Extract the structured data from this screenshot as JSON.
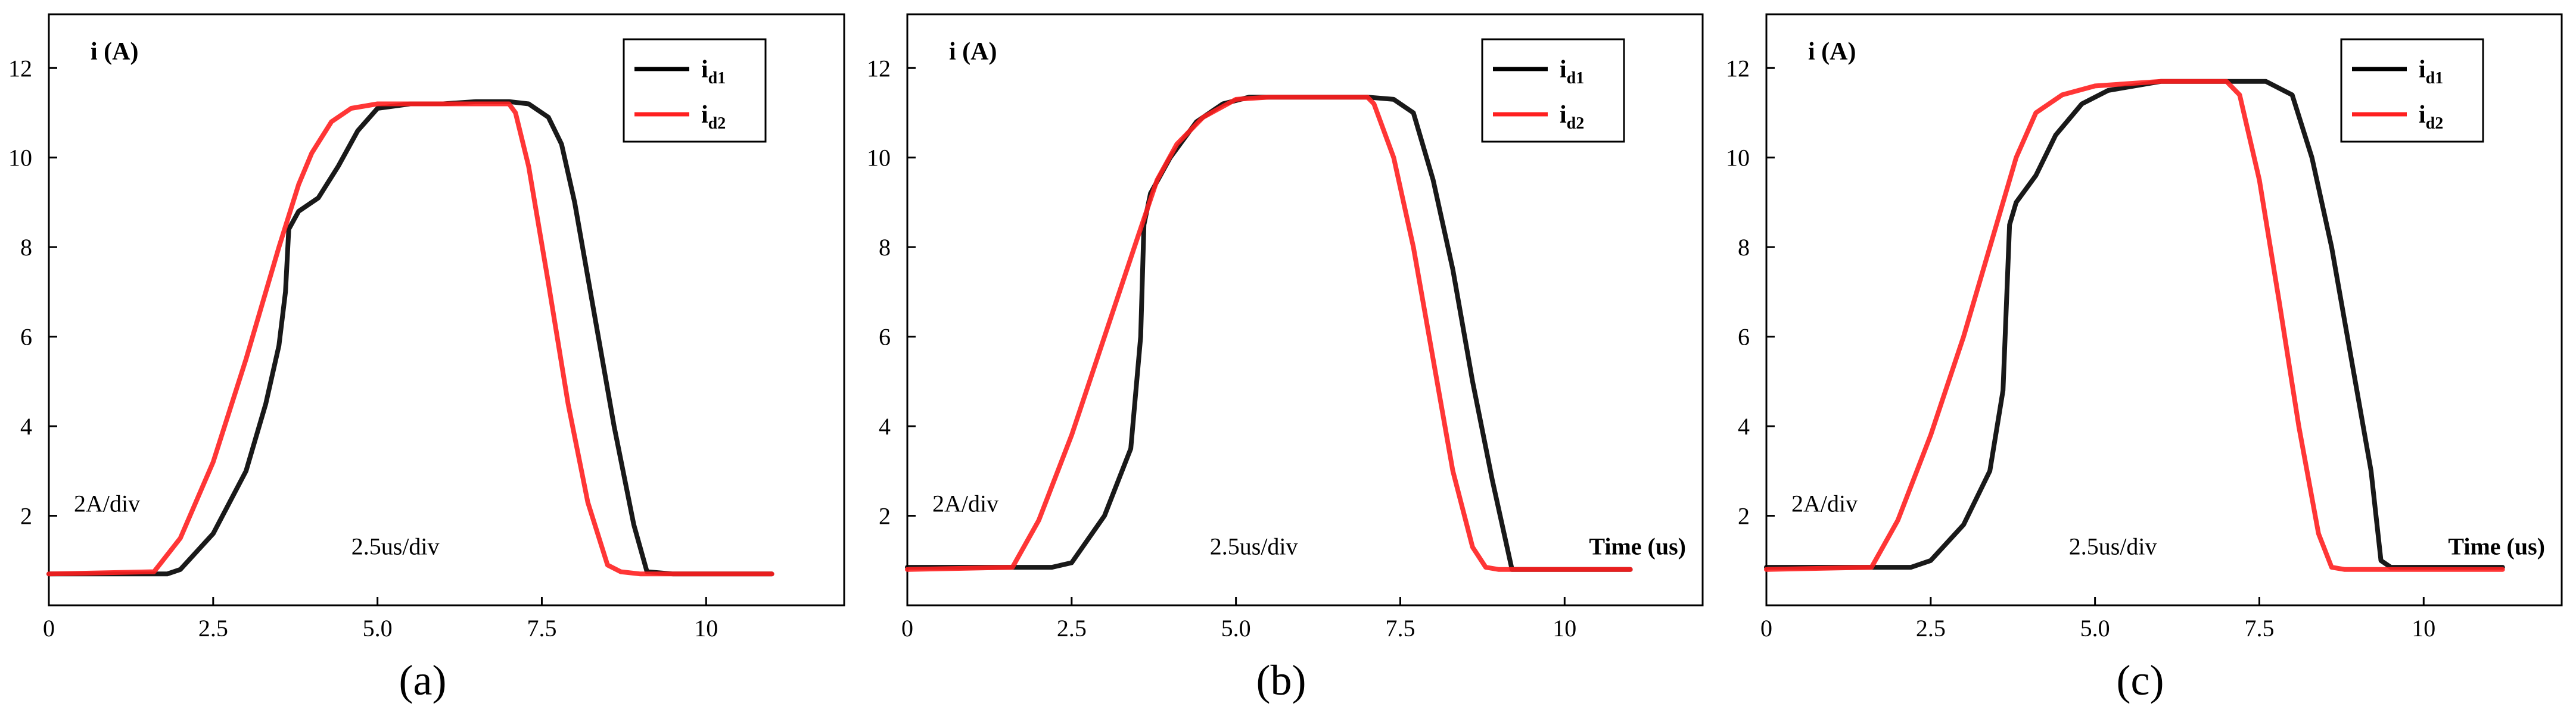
{
  "chart_data": [
    {
      "type": "line",
      "caption": "(a)",
      "ylabel": "i (A)",
      "xlabel": "",
      "scale_y": "2A/div",
      "scale_x": "2.5us/div",
      "xlim": [
        0,
        12.1
      ],
      "ylim": [
        0,
        13.2
      ],
      "xticks": [
        0,
        2.5,
        5.0,
        7.5,
        10
      ],
      "xtick_labels": [
        "0",
        "2.5",
        "5.0",
        "7.5",
        "10"
      ],
      "yticks": [
        2,
        4,
        6,
        8,
        10,
        12
      ],
      "ytick_labels": [
        "2",
        "4",
        "6",
        "8",
        "10",
        "12"
      ],
      "legend_position": "top-right",
      "series": [
        {
          "name": "i",
          "sub": "d1",
          "color": "#000000",
          "x": [
            0,
            1.8,
            2.0,
            2.5,
            3.0,
            3.3,
            3.5,
            3.6,
            3.65,
            3.8,
            4.1,
            4.4,
            4.7,
            5.0,
            5.5,
            6.0,
            6.5,
            7.0,
            7.3,
            7.6,
            7.8,
            8.0,
            8.3,
            8.6,
            8.9,
            9.1,
            9.5,
            11.0
          ],
          "y": [
            0.7,
            0.7,
            0.8,
            1.6,
            3.0,
            4.5,
            5.8,
            7.0,
            8.4,
            8.8,
            9.1,
            9.8,
            10.6,
            11.1,
            11.2,
            11.2,
            11.25,
            11.25,
            11.2,
            10.9,
            10.3,
            9.0,
            6.5,
            4.0,
            1.8,
            0.75,
            0.7,
            0.7
          ]
        },
        {
          "name": "i",
          "sub": "d2",
          "color": "#ff2020",
          "x": [
            0,
            1.6,
            2.0,
            2.5,
            3.0,
            3.5,
            3.8,
            4.0,
            4.3,
            4.6,
            5.0,
            5.5,
            6.0,
            6.5,
            7.0,
            7.1,
            7.3,
            7.6,
            7.9,
            8.2,
            8.5,
            8.7,
            9.0,
            11.0
          ],
          "y": [
            0.7,
            0.75,
            1.5,
            3.2,
            5.5,
            8.0,
            9.4,
            10.1,
            10.8,
            11.1,
            11.2,
            11.2,
            11.2,
            11.2,
            11.2,
            11.0,
            9.8,
            7.2,
            4.5,
            2.3,
            0.9,
            0.75,
            0.7,
            0.7
          ]
        }
      ]
    },
    {
      "type": "line",
      "caption": "(b)",
      "ylabel": "i (A)",
      "xlabel": "Time (us)",
      "scale_y": "2A/div",
      "scale_x": "2.5us/div",
      "xlim": [
        0,
        12.1
      ],
      "ylim": [
        0,
        13.2
      ],
      "xticks": [
        0,
        2.5,
        5.0,
        7.5,
        10
      ],
      "xtick_labels": [
        "0",
        "2.5",
        "5.0",
        "7.5",
        "10"
      ],
      "yticks": [
        2,
        4,
        6,
        8,
        10,
        12
      ],
      "ytick_labels": [
        "2",
        "4",
        "6",
        "8",
        "10",
        "12"
      ],
      "legend_position": "top-right",
      "series": [
        {
          "name": "i",
          "sub": "d1",
          "color": "#000000",
          "x": [
            0,
            2.2,
            2.5,
            3.0,
            3.4,
            3.55,
            3.6,
            3.7,
            4.0,
            4.4,
            4.8,
            5.2,
            6.0,
            7.0,
            7.4,
            7.7,
            8.0,
            8.3,
            8.6,
            8.9,
            9.2,
            9.5,
            11.0
          ],
          "y": [
            0.85,
            0.85,
            0.95,
            2.0,
            3.5,
            6.0,
            8.5,
            9.2,
            10.0,
            10.8,
            11.2,
            11.35,
            11.35,
            11.35,
            11.3,
            11.0,
            9.5,
            7.5,
            5.0,
            2.8,
            0.8,
            0.8,
            0.8
          ]
        },
        {
          "name": "i",
          "sub": "d2",
          "color": "#ff2020",
          "x": [
            0,
            1.6,
            2.0,
            2.5,
            3.0,
            3.5,
            3.8,
            4.1,
            4.5,
            5.0,
            5.5,
            6.0,
            6.5,
            7.0,
            7.1,
            7.4,
            7.7,
            8.0,
            8.3,
            8.6,
            8.8,
            9.0,
            11.0
          ],
          "y": [
            0.8,
            0.85,
            1.9,
            3.8,
            6.0,
            8.2,
            9.5,
            10.3,
            10.9,
            11.3,
            11.35,
            11.35,
            11.35,
            11.35,
            11.2,
            10.0,
            8.0,
            5.5,
            3.0,
            1.3,
            0.85,
            0.8,
            0.8
          ]
        }
      ]
    },
    {
      "type": "line",
      "caption": "(c)",
      "ylabel": "i (A)",
      "xlabel": "Time (us)",
      "scale_y": "2A/div",
      "scale_x": "2.5us/div",
      "xlim": [
        0,
        12.1
      ],
      "ylim": [
        0,
        13.2
      ],
      "xticks": [
        0,
        2.5,
        5.0,
        7.5,
        10
      ],
      "xtick_labels": [
        "0",
        "2.5",
        "5.0",
        "7.5",
        "10"
      ],
      "yticks": [
        2,
        4,
        6,
        8,
        10,
        12
      ],
      "ytick_labels": [
        "2",
        "4",
        "6",
        "8",
        "10",
        "12"
      ],
      "legend_position": "top-right",
      "series": [
        {
          "name": "i",
          "sub": "d1",
          "color": "#000000",
          "x": [
            0,
            2.2,
            2.5,
            3.0,
            3.4,
            3.6,
            3.7,
            3.8,
            4.1,
            4.4,
            4.8,
            5.2,
            6.0,
            7.0,
            7.6,
            8.0,
            8.3,
            8.6,
            8.9,
            9.2,
            9.35,
            9.5,
            11.2
          ],
          "y": [
            0.85,
            0.85,
            1.0,
            1.8,
            3.0,
            4.8,
            8.5,
            9.0,
            9.6,
            10.5,
            11.2,
            11.5,
            11.7,
            11.7,
            11.7,
            11.4,
            10.0,
            8.0,
            5.5,
            3.0,
            1.0,
            0.85,
            0.85
          ]
        },
        {
          "name": "i",
          "sub": "d2",
          "color": "#ff2020",
          "x": [
            0,
            1.6,
            2.0,
            2.5,
            3.0,
            3.5,
            3.8,
            4.1,
            4.5,
            5.0,
            6.0,
            7.0,
            7.2,
            7.5,
            7.8,
            8.1,
            8.4,
            8.6,
            8.8,
            11.2
          ],
          "y": [
            0.8,
            0.85,
            1.9,
            3.8,
            6.0,
            8.5,
            10.0,
            11.0,
            11.4,
            11.6,
            11.7,
            11.7,
            11.4,
            9.5,
            6.8,
            4.0,
            1.6,
            0.85,
            0.8,
            0.8
          ]
        }
      ]
    }
  ]
}
